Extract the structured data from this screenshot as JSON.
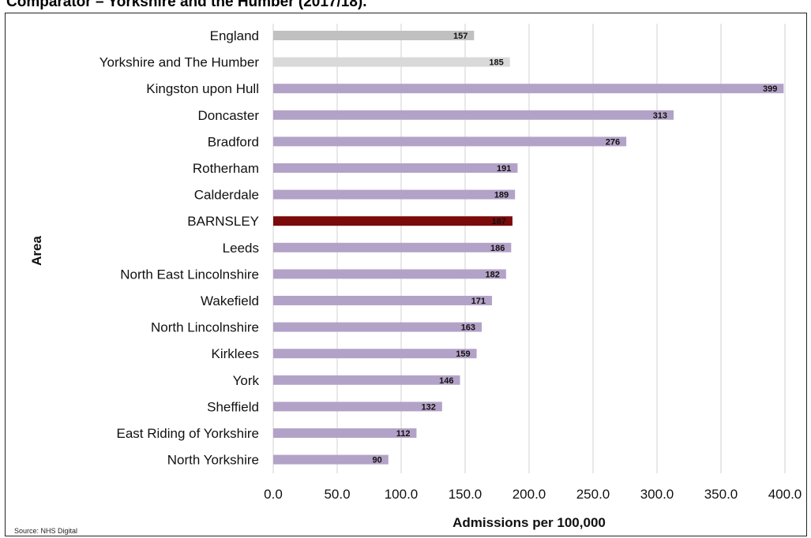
{
  "title": "Comparator – Yorkshire and the Humber (2017/18).",
  "source_note": "Source: NHS Digital",
  "chart_data": {
    "type": "bar",
    "orientation": "horizontal",
    "ylabel": "Area",
    "xlabel": "Admissions per 100,000",
    "xlim": [
      0,
      400
    ],
    "x_ticks": [
      "0.0",
      "50.0",
      "100.0",
      "150.0",
      "200.0",
      "250.0",
      "300.0",
      "350.0",
      "400.0"
    ],
    "grid": true,
    "categories": [
      "England",
      "Yorkshire and The Humber",
      "Kingston upon Hull",
      "Doncaster",
      "Bradford",
      "Rotherham",
      "Calderdale",
      "BARNSLEY",
      "Leeds",
      "North East Lincolnshire",
      "Wakefield",
      "North Lincolnshire",
      "Kirklees",
      "York",
      "Sheffield",
      "East Riding of Yorkshire",
      "North Yorkshire"
    ],
    "values": [
      157,
      185,
      399,
      313,
      276,
      191,
      189,
      187,
      186,
      182,
      171,
      163,
      159,
      146,
      132,
      112,
      90
    ],
    "colors": [
      "#c0c0c0",
      "#d9d9d9",
      "#b3a2c7",
      "#b3a2c7",
      "#b3a2c7",
      "#b3a2c7",
      "#b3a2c7",
      "#7b0a0a",
      "#b3a2c7",
      "#b3a2c7",
      "#b3a2c7",
      "#b3a2c7",
      "#b3a2c7",
      "#b3a2c7",
      "#b3a2c7",
      "#b3a2c7",
      "#b3a2c7"
    ]
  }
}
